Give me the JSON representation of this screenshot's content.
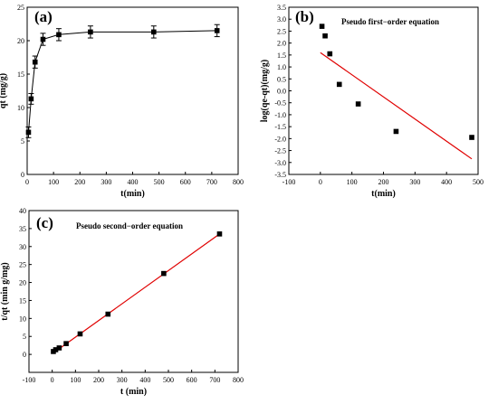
{
  "chart_data": [
    {
      "type": "scatter",
      "panel": "(a)",
      "xlabel": "t(min)",
      "ylabel": "qt (mg/g)",
      "xlim": [
        0,
        800
      ],
      "ylim": [
        0,
        25
      ],
      "xticks": [
        "0",
        "100",
        "200",
        "300",
        "400",
        "500",
        "600",
        "700",
        "800"
      ],
      "yticks": [
        "0",
        "5",
        "10",
        "15",
        "20",
        "25"
      ],
      "connect_points": true,
      "error_bars": true,
      "color": "#000000",
      "points": [
        {
          "x": 5,
          "y": 6.3,
          "err": 0.8
        },
        {
          "x": 15,
          "y": 11.3,
          "err": 0.8
        },
        {
          "x": 30,
          "y": 16.8,
          "err": 0.9
        },
        {
          "x": 60,
          "y": 20.2,
          "err": 0.9
        },
        {
          "x": 120,
          "y": 20.9,
          "err": 0.9
        },
        {
          "x": 240,
          "y": 21.3,
          "err": 0.9
        },
        {
          "x": 480,
          "y": 21.3,
          "err": 0.9
        },
        {
          "x": 720,
          "y": 21.5,
          "err": 0.9
        }
      ]
    },
    {
      "type": "scatter",
      "panel": "(b)",
      "annotation": "Pseudo first−order equation",
      "xlabel": "t(min)",
      "ylabel": "log(qe-qt)(mg/g)",
      "xlim": [
        -100,
        500
      ],
      "ylim": [
        -3.5,
        3.5
      ],
      "xticks": [
        "-100",
        "0",
        "100",
        "200",
        "300",
        "400",
        "500"
      ],
      "yticks": [
        "-3.5",
        "-3.0",
        "-2.5",
        "-2.0",
        "-1.5",
        "-1.0",
        "-0.5",
        "0.0",
        "0.5",
        "1.0",
        "1.5",
        "2.0",
        "2.5",
        "3.0",
        "3.5"
      ],
      "color": "#000000",
      "fit_color": "#e00000",
      "points": [
        {
          "x": 5,
          "y": 2.7
        },
        {
          "x": 15,
          "y": 2.3
        },
        {
          "x": 30,
          "y": 1.55
        },
        {
          "x": 60,
          "y": 0.27
        },
        {
          "x": 120,
          "y": -0.55
        },
        {
          "x": 240,
          "y": -1.7
        },
        {
          "x": 480,
          "y": -1.95
        }
      ],
      "fit_line": {
        "x": [
          0,
          480
        ],
        "y": [
          1.6,
          -2.85
        ]
      }
    },
    {
      "type": "scatter",
      "panel": "(c)",
      "annotation": "Pseudo second−order equation",
      "xlabel": "t (min)",
      "ylabel": "t/qt (min g/mg)",
      "xlim": [
        -100,
        800
      ],
      "ylim": [
        -5,
        40
      ],
      "xticks": [
        "-100",
        "0",
        "100",
        "200",
        "300",
        "400",
        "500",
        "600",
        "700",
        "800"
      ],
      "yticks": [
        "0",
        "5",
        "10",
        "15",
        "20",
        "25",
        "30",
        "35",
        "40"
      ],
      "color": "#000000",
      "fit_color": "#e00000",
      "points": [
        {
          "x": 5,
          "y": 0.8
        },
        {
          "x": 15,
          "y": 1.3
        },
        {
          "x": 30,
          "y": 1.8
        },
        {
          "x": 60,
          "y": 3.0
        },
        {
          "x": 120,
          "y": 5.7
        },
        {
          "x": 240,
          "y": 11.2
        },
        {
          "x": 480,
          "y": 22.5
        },
        {
          "x": 720,
          "y": 33.5
        }
      ],
      "fit_line": {
        "x": [
          5,
          720
        ],
        "y": [
          0.4,
          33.5
        ]
      }
    }
  ]
}
